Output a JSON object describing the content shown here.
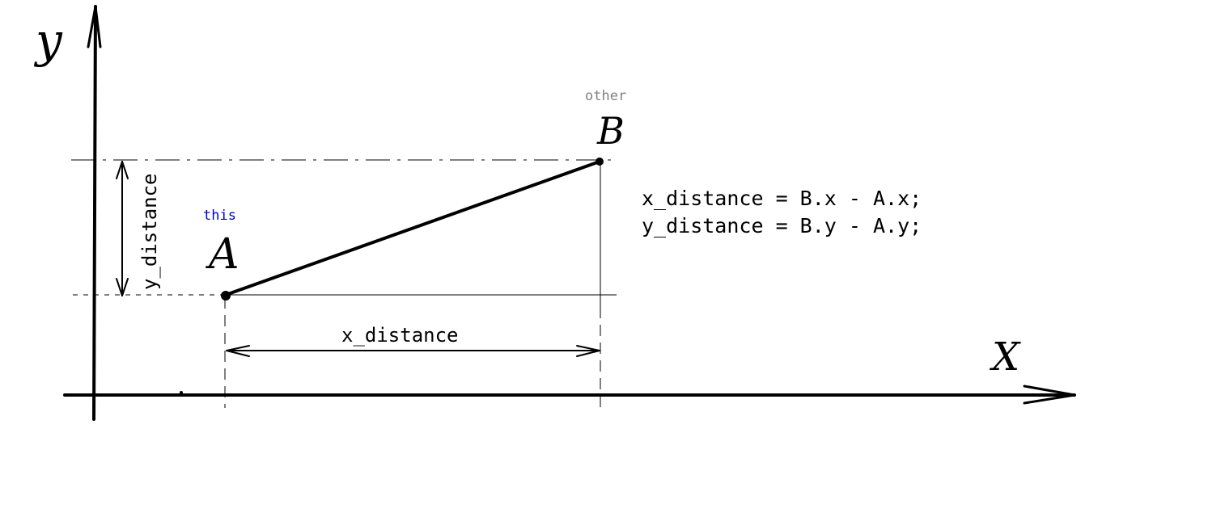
{
  "axes": {
    "x_label": "X",
    "y_label": "y"
  },
  "points": {
    "a": {
      "label": "A",
      "tag": "this",
      "tag_color": "#0000cc"
    },
    "b": {
      "label": "B",
      "tag": "other",
      "tag_color": "#808080"
    }
  },
  "dimensions": {
    "x_distance_label": "x_distance",
    "y_distance_label": "y_distance"
  },
  "formulas": [
    "x_distance = B.x - A.x;",
    "y_distance = B.y - A.y;"
  ]
}
